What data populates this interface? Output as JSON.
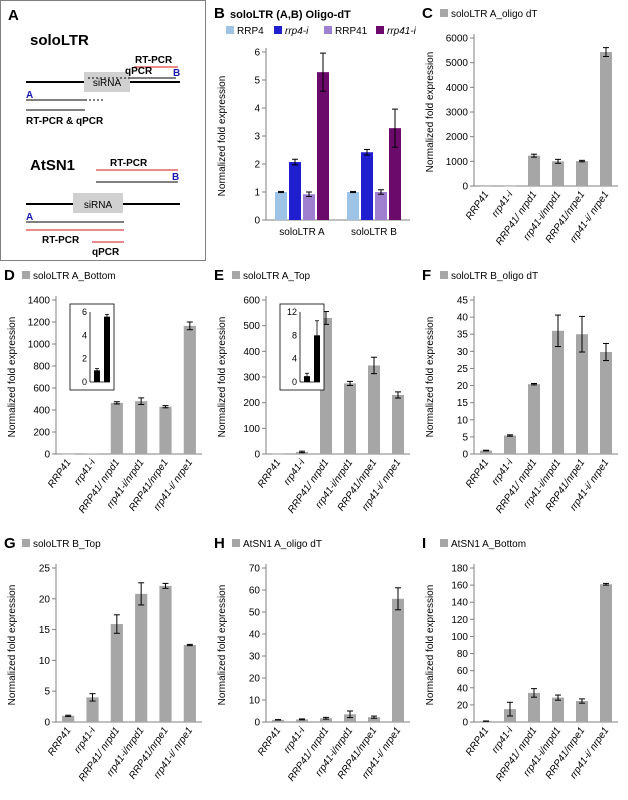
{
  "panel_a": {
    "letter": "A",
    "sololtr": {
      "title": "soloLTR",
      "sirna": "siRNA",
      "rtpcr": "RT-PCR",
      "qpcr": "qPCR",
      "primer_b": "B",
      "primer_a": "A",
      "rtpcr_qpcr": "RT-PCR & qPCR"
    },
    "atsn1": {
      "title": "AtSN1",
      "sirna": "siRNA",
      "rtpcr_top": "RT-PCR",
      "primer_b": "B",
      "primer_a": "A",
      "rtpcr_bottom": "RT-PCR",
      "qpcr": "qPCR"
    },
    "colors": {
      "primer_a": "#1a1ab0",
      "primer_b": "#1a1ab0",
      "red": "#e04040",
      "box": "#d0d0d0"
    }
  },
  "colors": {
    "bar": "#a6a6a6",
    "axis": "#808080",
    "grid": "#d9d9d9"
  },
  "chart_data": [
    {
      "id": "B",
      "type": "bar",
      "letter": "B",
      "title": "soloLTR (A,B) Oligo-dT",
      "ylabel": "Normalized fold expression",
      "ylim": [
        0,
        6
      ],
      "yticks": [
        0,
        1,
        2,
        3,
        4,
        5,
        6
      ],
      "categories": [
        "soloLTR A",
        "soloLTR B"
      ],
      "legend_position": "top",
      "series": [
        {
          "name": "RRP4",
          "italic": false,
          "color": "#9dc3e6",
          "values": [
            1.0,
            1.0
          ],
          "errors": [
            0.02,
            0.02
          ]
        },
        {
          "name": "rrp4-i",
          "italic": true,
          "color": "#1f1fd0",
          "values": [
            2.07,
            2.42
          ],
          "errors": [
            0.1,
            0.1
          ]
        },
        {
          "name": "RRP41",
          "italic": false,
          "color": "#9e7fd0",
          "values": [
            0.92,
            1.0
          ],
          "errors": [
            0.08,
            0.08
          ]
        },
        {
          "name": "rrp41-i",
          "italic": true,
          "color": "#6b0a6b",
          "values": [
            5.28,
            3.28
          ],
          "errors": [
            0.68,
            0.68
          ]
        }
      ]
    },
    {
      "id": "C",
      "type": "bar",
      "letter": "C",
      "title": "soloLTR A_oligo dT",
      "ylabel": "Normalized fold expression",
      "ylim": [
        0,
        6000
      ],
      "yticks": [
        0,
        1000,
        2000,
        3000,
        4000,
        5000,
        6000
      ],
      "categories": [
        "RRP41",
        "rrp41-i",
        "RRP41/ nrpd1",
        "rrp41-i/nrpd1",
        "RRP41/nrpe1",
        "rrp41-i/ nrpe1"
      ],
      "values": [
        1,
        5,
        1230,
        1000,
        1010,
        5430
      ],
      "errors": [
        0,
        0,
        60,
        80,
        30,
        180
      ]
    },
    {
      "id": "D",
      "type": "bar",
      "letter": "D",
      "title": "soloLTR A_Bottom",
      "ylabel": "Normalized fold expression",
      "ylim": [
        0,
        1400
      ],
      "yticks": [
        0,
        200,
        400,
        600,
        800,
        1000,
        1200,
        1400
      ],
      "categories": [
        "RRP41",
        "rrp41-i",
        "RRP41/ nrpd1",
        "rrp41-i/nrpd1",
        "RRP41/nrpe1",
        "rrp41-i/ nrpe1"
      ],
      "values": [
        1,
        5,
        465,
        480,
        430,
        1165
      ],
      "errors": [
        0,
        0,
        10,
        30,
        10,
        35
      ],
      "inset": {
        "ylim": [
          0,
          6
        ],
        "yticks": [
          0,
          2,
          4,
          6
        ],
        "values": [
          1,
          5.6
        ],
        "errors": [
          0.15,
          0.2
        ]
      }
    },
    {
      "id": "E",
      "type": "bar",
      "letter": "E",
      "title": "soloLTR A_Top",
      "ylabel": "Normalized fold expression",
      "ylim": [
        0,
        600
      ],
      "yticks": [
        0,
        100,
        200,
        300,
        400,
        500,
        600
      ],
      "categories": [
        "RRP41",
        "rrp41-i",
        "RRP41/ nrpd1",
        "rrp41-i/nrpd1",
        "RRP41/nrpe1",
        "rrp41-i/ nrpe1"
      ],
      "values": [
        1,
        8,
        530,
        275,
        345,
        230
      ],
      "errors": [
        0,
        3,
        25,
        8,
        32,
        12
      ],
      "inset": {
        "ylim": [
          0,
          12
        ],
        "yticks": [
          0,
          4,
          8,
          12
        ],
        "values": [
          1,
          8
        ],
        "errors": [
          0.5,
          2.5
        ]
      }
    },
    {
      "id": "F",
      "type": "bar",
      "letter": "F",
      "title": "soloLTR B_oligo dT",
      "ylabel": "Normalized fold expression",
      "ylim": [
        0,
        45
      ],
      "yticks": [
        0,
        5,
        10,
        15,
        20,
        25,
        30,
        35,
        40,
        45
      ],
      "categories": [
        "RRP41",
        "rrp41-i",
        "RRP41/ nrpd1",
        "rrp41-i/nrpd1",
        "RRP41/nrpe1",
        "rrp41-i/ nrpe1"
      ],
      "values": [
        1,
        5.4,
        20.4,
        36,
        35,
        29.8
      ],
      "errors": [
        0.1,
        0.2,
        0.2,
        4.6,
        5.2,
        2.5
      ]
    },
    {
      "id": "G",
      "type": "bar",
      "letter": "G",
      "title": "soloLTR B_Top",
      "ylabel": "Normalized fold expression",
      "ylim": [
        0,
        25
      ],
      "yticks": [
        0,
        5,
        10,
        15,
        20,
        25
      ],
      "categories": [
        "RRP41",
        "rrp41-i",
        "RRP41/ nrpd1",
        "rrp41-i/nrpd1",
        "RRP41/nrpe1",
        "rrp41-i/ nrpe1"
      ],
      "values": [
        1,
        4,
        15.9,
        20.8,
        22.1,
        12.5
      ],
      "errors": [
        0.1,
        0.6,
        1.5,
        1.8,
        0.4,
        0.1
      ]
    },
    {
      "id": "H",
      "type": "bar",
      "letter": "H",
      "title": "AtSN1 A_oligo dT",
      "ylabel": "Normalized fold expression",
      "ylim": [
        0,
        70
      ],
      "yticks": [
        0,
        10,
        20,
        30,
        40,
        50,
        60,
        70
      ],
      "categories": [
        "RRP41",
        "rrp41-i",
        "RRP41/ nrpd1",
        "rrp41-i/nrpd1",
        "RRP41/nrpe1",
        "rrp41-i/ nrpe1"
      ],
      "values": [
        1,
        1.2,
        1.7,
        3.5,
        2.2,
        56
      ],
      "errors": [
        0.1,
        0.2,
        0.4,
        1.5,
        0.5,
        5
      ]
    },
    {
      "id": "I",
      "type": "bar",
      "letter": "I",
      "title": "AtSN1 A_Bottom",
      "ylabel": "Normalized fold expression",
      "ylim": [
        0,
        180
      ],
      "yticks": [
        0,
        20,
        40,
        60,
        80,
        100,
        120,
        140,
        160,
        180
      ],
      "categories": [
        "RRP41",
        "rrp41-i",
        "RRP41/ nrpd1",
        "rrp41-i/nrpd1",
        "RRP41/nrpe1",
        "rrp41-i/ nrpe1"
      ],
      "values": [
        1,
        15,
        34,
        28.5,
        24.5,
        161
      ],
      "errors": [
        0.2,
        8,
        5,
        3,
        2.5,
        1
      ]
    }
  ]
}
